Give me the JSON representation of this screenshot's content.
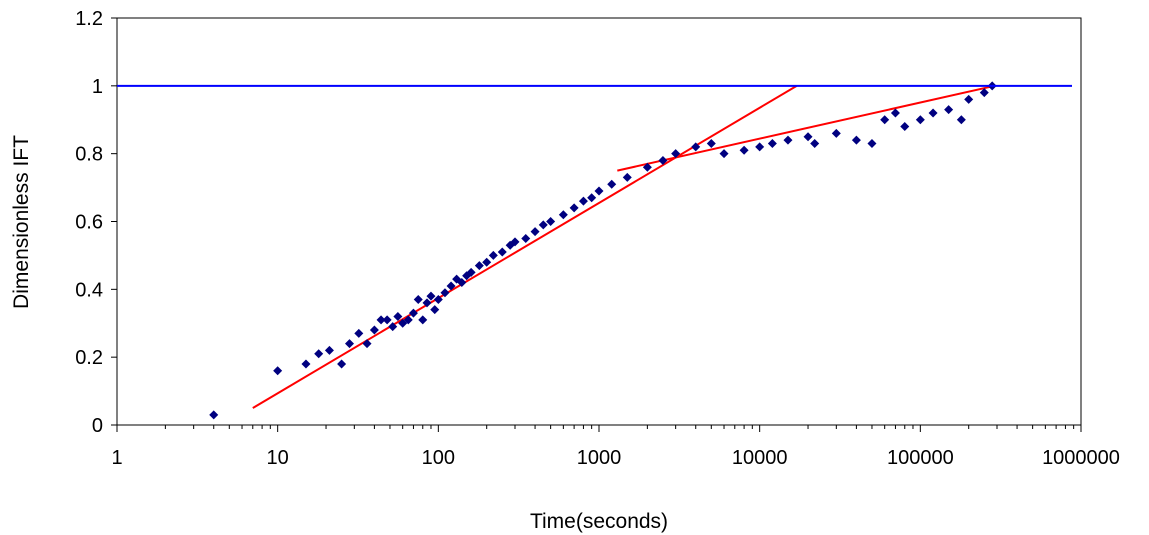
{
  "chart_data": {
    "type": "scatter",
    "title": "",
    "xlabel": "Time(seconds)",
    "ylabel": "Dimensionless IFT",
    "x_scale": "log",
    "xlim": [
      1,
      1000000
    ],
    "ylim": [
      0,
      1.2
    ],
    "x_tick_labels": [
      "1",
      "10",
      "100",
      "1000",
      "10000",
      "100000",
      "1000000"
    ],
    "y_tick_labels": [
      "0",
      "0.2",
      "0.4",
      "0.6",
      "0.8",
      "1",
      "1.2"
    ],
    "grid": false,
    "legend": "none",
    "colors": {
      "points": "#000080",
      "trend": "#ff0000",
      "reference": "#0000ff"
    },
    "marker": "diamond",
    "series": [
      {
        "points": [
          [
            4,
            0.03
          ],
          [
            10,
            0.16
          ],
          [
            15,
            0.18
          ],
          [
            18,
            0.21
          ],
          [
            21,
            0.22
          ],
          [
            25,
            0.18
          ],
          [
            28,
            0.24
          ],
          [
            32,
            0.27
          ],
          [
            36,
            0.24
          ],
          [
            40,
            0.28
          ],
          [
            44,
            0.31
          ],
          [
            48,
            0.31
          ],
          [
            52,
            0.29
          ],
          [
            56,
            0.32
          ],
          [
            60,
            0.3
          ],
          [
            65,
            0.31
          ],
          [
            70,
            0.33
          ],
          [
            75,
            0.37
          ],
          [
            80,
            0.31
          ],
          [
            85,
            0.36
          ],
          [
            90,
            0.38
          ],
          [
            95,
            0.34
          ],
          [
            100,
            0.37
          ],
          [
            110,
            0.39
          ],
          [
            120,
            0.41
          ],
          [
            130,
            0.43
          ],
          [
            140,
            0.42
          ],
          [
            150,
            0.44
          ],
          [
            160,
            0.45
          ],
          [
            180,
            0.47
          ],
          [
            200,
            0.48
          ],
          [
            220,
            0.5
          ],
          [
            250,
            0.51
          ],
          [
            280,
            0.53
          ],
          [
            300,
            0.54
          ],
          [
            350,
            0.55
          ],
          [
            400,
            0.57
          ],
          [
            450,
            0.59
          ],
          [
            500,
            0.6
          ],
          [
            600,
            0.62
          ],
          [
            700,
            0.64
          ],
          [
            800,
            0.66
          ],
          [
            900,
            0.67
          ],
          [
            1000,
            0.69
          ],
          [
            1200,
            0.71
          ],
          [
            1500,
            0.73
          ],
          [
            2000,
            0.76
          ],
          [
            2500,
            0.78
          ],
          [
            3000,
            0.8
          ],
          [
            4000,
            0.82
          ],
          [
            5000,
            0.83
          ],
          [
            6000,
            0.8
          ],
          [
            8000,
            0.81
          ],
          [
            10000,
            0.82
          ],
          [
            12000,
            0.83
          ],
          [
            15000,
            0.84
          ],
          [
            20000,
            0.85
          ],
          [
            22000,
            0.83
          ],
          [
            30000,
            0.86
          ],
          [
            40000,
            0.84
          ],
          [
            50000,
            0.83
          ],
          [
            60000,
            0.9
          ],
          [
            70000,
            0.92
          ],
          [
            80000,
            0.88
          ],
          [
            100000,
            0.9
          ],
          [
            120000,
            0.92
          ],
          [
            150000,
            0.93
          ],
          [
            180000,
            0.9
          ],
          [
            200000,
            0.96
          ],
          [
            250000,
            0.98
          ],
          [
            280000,
            1.0
          ]
        ]
      }
    ],
    "trend_lines": [
      {
        "x": [
          7,
          17000
        ],
        "y": [
          0.05,
          1.0
        ]
      },
      {
        "x": [
          1300,
          290000
        ],
        "y": [
          0.75,
          1.0
        ]
      }
    ],
    "reference_lines": [
      {
        "y": 1.0
      }
    ]
  }
}
